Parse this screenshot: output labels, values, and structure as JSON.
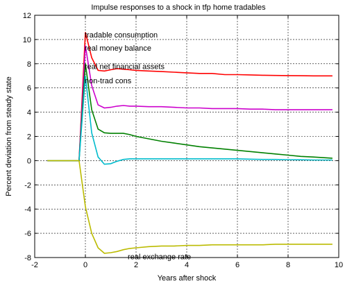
{
  "chart_data": {
    "type": "line",
    "title": "Impulse responses to a shock in tfp home tradables",
    "xlabel": "Years after shock",
    "ylabel": "Percent deviation from steady state",
    "xlim": [
      -2,
      10
    ],
    "ylim": [
      -8,
      12
    ],
    "xticks": [
      -2,
      0,
      2,
      4,
      6,
      8,
      10
    ],
    "yticks": [
      -8,
      -6,
      -4,
      -2,
      0,
      2,
      4,
      6,
      8,
      10,
      12
    ],
    "grid": true,
    "annotations": [
      {
        "text": "tradable consumption",
        "x": 0.0,
        "y": 10.4
      },
      {
        "text": "real money balance",
        "x": 0.0,
        "y": 9.3
      },
      {
        "text": "real net financial assets",
        "x": 0.0,
        "y": 7.8
      },
      {
        "text": "non-trad cons",
        "x": 0.0,
        "y": 6.6
      },
      {
        "text": "real exchange rate",
        "x": 1.7,
        "y": -7.9
      }
    ],
    "series": [
      {
        "color": "#ff0000",
        "x": [
          -1.5,
          -0.25,
          0,
          0.25,
          0.5,
          0.75,
          1,
          1.25,
          1.5,
          1.75,
          2,
          2.5,
          3,
          3.5,
          4,
          4.5,
          5,
          5.5,
          6,
          6.5,
          7,
          7.5,
          8,
          8.5,
          9,
          9.75
        ],
        "y": [
          0,
          0,
          10.6,
          8.5,
          7.45,
          7.4,
          7.5,
          7.6,
          7.55,
          7.5,
          7.45,
          7.4,
          7.35,
          7.3,
          7.25,
          7.2,
          7.2,
          7.1,
          7.1,
          7.08,
          7.05,
          7.03,
          7.02,
          7.01,
          7.0,
          7.0
        ]
      },
      {
        "color": "#cc00cc",
        "x": [
          -1.5,
          -0.25,
          0,
          0.25,
          0.5,
          0.75,
          1,
          1.25,
          1.5,
          1.75,
          2,
          2.5,
          3,
          3.5,
          4,
          4.5,
          5,
          5.5,
          6,
          6.5,
          7,
          7.5,
          8,
          8.5,
          9,
          9.75
        ],
        "y": [
          0,
          0,
          9.5,
          6.2,
          4.6,
          4.35,
          4.4,
          4.5,
          4.55,
          4.5,
          4.5,
          4.45,
          4.45,
          4.4,
          4.35,
          4.35,
          4.3,
          4.3,
          4.3,
          4.25,
          4.25,
          4.2,
          4.2,
          4.2,
          4.2,
          4.2
        ]
      },
      {
        "color": "#008000",
        "x": [
          -1.5,
          -0.25,
          0,
          0.25,
          0.5,
          0.75,
          1,
          1.25,
          1.5,
          1.75,
          2,
          2.5,
          3,
          3.5,
          4,
          4.5,
          5,
          5.5,
          6,
          6.5,
          7,
          7.5,
          8,
          8.5,
          9,
          9.75
        ],
        "y": [
          0,
          0,
          8.0,
          4.2,
          2.6,
          2.3,
          2.25,
          2.25,
          2.25,
          2.15,
          2.0,
          1.8,
          1.6,
          1.45,
          1.3,
          1.15,
          1.05,
          0.95,
          0.85,
          0.75,
          0.65,
          0.55,
          0.45,
          0.35,
          0.3,
          0.2
        ]
      },
      {
        "color": "#00bbcc",
        "x": [
          -1.5,
          -0.25,
          0,
          0.25,
          0.5,
          0.75,
          1,
          1.25,
          1.5,
          1.75,
          2,
          2.5,
          3,
          3.5,
          4,
          4.5,
          5,
          5.5,
          6,
          6.5,
          7,
          7.5,
          8,
          8.5,
          9,
          9.75
        ],
        "y": [
          0,
          0,
          7.0,
          2.3,
          0.3,
          -0.3,
          -0.25,
          -0.05,
          0.1,
          0.15,
          0.15,
          0.15,
          0.15,
          0.15,
          0.15,
          0.15,
          0.15,
          0.15,
          0.15,
          0.12,
          0.1,
          0.1,
          0.08,
          0.07,
          0.05,
          0.05
        ]
      },
      {
        "color": "#bbbb00",
        "x": [
          -1.5,
          -0.25,
          0,
          0.25,
          0.5,
          0.75,
          1,
          1.25,
          1.5,
          1.75,
          2,
          2.5,
          3,
          3.5,
          4,
          4.5,
          5,
          5.5,
          6,
          6.5,
          7,
          7.5,
          8,
          8.5,
          9,
          9.75
        ],
        "y": [
          0,
          0,
          -3.8,
          -6.0,
          -7.2,
          -7.65,
          -7.6,
          -7.5,
          -7.35,
          -7.25,
          -7.2,
          -7.1,
          -7.05,
          -7.05,
          -7.0,
          -7.0,
          -6.95,
          -6.95,
          -6.95,
          -6.95,
          -6.95,
          -6.9,
          -6.9,
          -6.9,
          -6.9,
          -6.9
        ]
      }
    ]
  }
}
